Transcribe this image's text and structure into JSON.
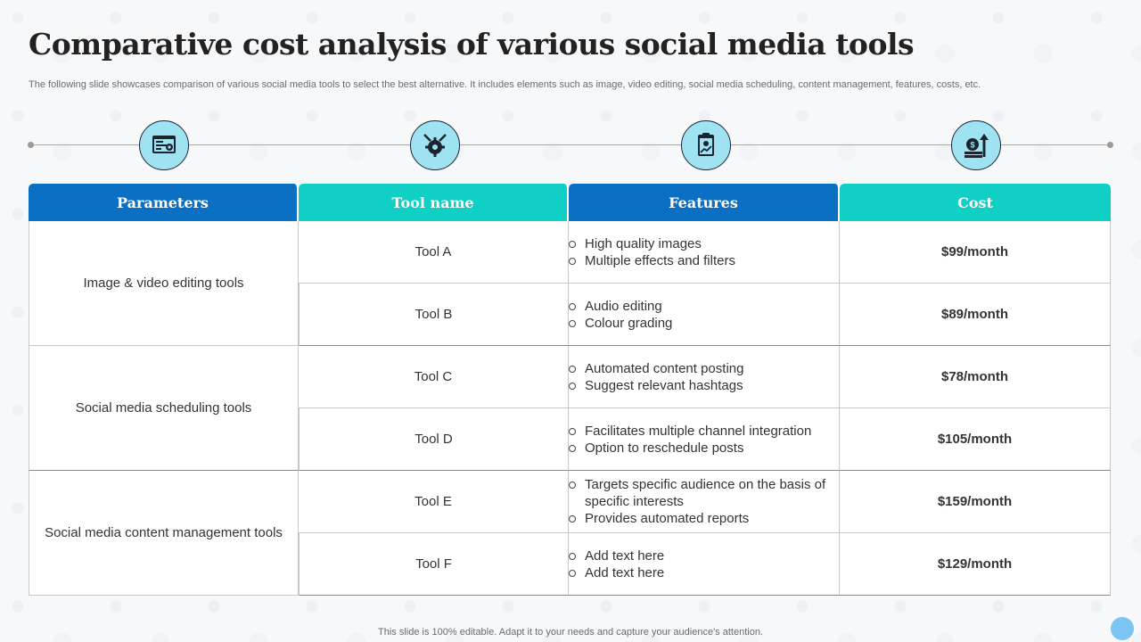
{
  "slide": {
    "title": "Comparative cost analysis of various social media tools",
    "subtitle": "The following slide showcases comparison of various social media tools to select the best alternative. It includes elements such as image, video editing, social media scheduling, content management, features, costs, etc.",
    "footer": "This slide is 100% editable. Adapt it to your needs and capture your audience's attention."
  },
  "icons": [
    "dashboard-settings-icon",
    "gear-tools-icon",
    "clipboard-report-icon",
    "money-growth-icon"
  ],
  "colors": {
    "header_dark": "#0b6fc4",
    "header_teal": "#10cfc4",
    "icon_fill": "#9fe3f3",
    "corner_dot": "#7cc4f2"
  },
  "table": {
    "headers": [
      "Parameters",
      "Tool name",
      "Features",
      "Cost"
    ],
    "groups": [
      {
        "parameter": "Image & video editing tools",
        "rows": [
          {
            "tool": "Tool A",
            "features": [
              "High quality images",
              "Multiple effects and filters"
            ],
            "cost": "$99/month"
          },
          {
            "tool": "Tool B",
            "features": [
              "Audio editing",
              "Colour grading"
            ],
            "cost": "$89/month"
          }
        ]
      },
      {
        "parameter": "Social media scheduling tools",
        "rows": [
          {
            "tool": "Tool C",
            "features": [
              "Automated content posting",
              "Suggest relevant hashtags"
            ],
            "cost": "$78/month"
          },
          {
            "tool": "Tool D",
            "features": [
              "Facilitates multiple channel integration",
              "Option to reschedule posts"
            ],
            "cost": "$105/month"
          }
        ]
      },
      {
        "parameter": "Social media content management tools",
        "rows": [
          {
            "tool": "Tool E",
            "features": [
              "Targets specific audience on the basis of specific interests",
              "Provides automated reports"
            ],
            "cost": "$159/month"
          },
          {
            "tool": "Tool F",
            "features": [
              "Add text here",
              "Add text here"
            ],
            "cost": "$129/month"
          }
        ]
      }
    ]
  }
}
